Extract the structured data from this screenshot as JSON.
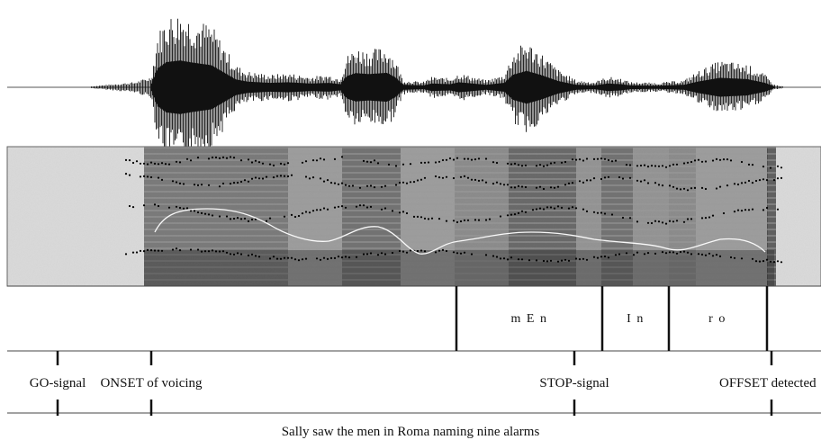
{
  "segments": [
    {
      "label": "m E n"
    },
    {
      "label": "I n"
    },
    {
      "label": "r o"
    }
  ],
  "events": {
    "go_signal": "GO-signal",
    "onset_of_voicing": "ONSET of voicing",
    "stop_signal": "STOP-signal",
    "offset_detected": "OFFSET detected"
  },
  "caption": "Sally saw the men in Roma naming nine alarms",
  "colors": {
    "waveform": "#111111",
    "spectrogram_dark": "#2a2a2a",
    "spectrogram_light": "#d9d9d9",
    "pitch_contour": "#ffffff",
    "formant_dots": "#000000"
  }
}
